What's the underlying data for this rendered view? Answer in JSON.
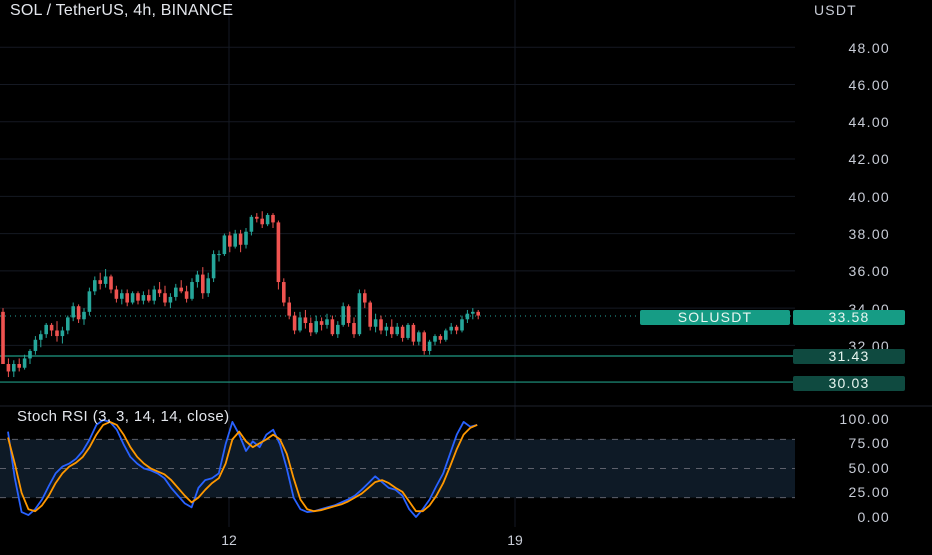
{
  "header": {
    "title": "SOL / TetherUS, 4h, BINANCE",
    "currency": "USDT"
  },
  "price_axis": {
    "ticks": [
      "48.00",
      "46.00",
      "44.00",
      "42.00",
      "40.00",
      "38.00",
      "36.00",
      "34.00",
      "32.00"
    ]
  },
  "time_axis": {
    "ticks": [
      "12",
      "19"
    ]
  },
  "price_tags": {
    "symbol_label": "SOLUSDT",
    "last_price": "33.58",
    "level_1": "31.43",
    "level_2": "30.03"
  },
  "indicator": {
    "title": "Stoch RSI (3, 3, 14, 14, close)",
    "ticks": [
      "100.00",
      "75.00",
      "50.00",
      "25.00",
      "0.00"
    ]
  },
  "colors": {
    "up": "#26a69a",
    "down": "#ef5350",
    "k_line": "#2962ff",
    "d_line": "#ff9800",
    "band": "#0e1a26",
    "level_line": "#1f9a82"
  },
  "chart_data": [
    {
      "type": "candlestick",
      "title": "SOL / TetherUS, 4h, BINANCE",
      "ylim": [
        28.8,
        50.0
      ],
      "y_unit": "USDT",
      "x_ticks": [
        "12",
        "19"
      ],
      "horizontal_levels": [
        31.43,
        30.03
      ],
      "last_price": 33.58,
      "ohlc": [
        [
          33.8,
          34.0,
          31.0,
          31.0
        ],
        [
          31.0,
          31.3,
          30.3,
          30.6
        ],
        [
          30.6,
          31.2,
          30.3,
          31.0
        ],
        [
          31.0,
          31.3,
          30.6,
          30.8
        ],
        [
          30.8,
          31.5,
          30.7,
          31.3
        ],
        [
          31.3,
          31.8,
          31.0,
          31.7
        ],
        [
          31.7,
          32.5,
          31.5,
          32.3
        ],
        [
          32.3,
          32.8,
          31.9,
          32.6
        ],
        [
          32.6,
          33.2,
          32.4,
          33.1
        ],
        [
          33.1,
          33.2,
          32.5,
          32.8
        ],
        [
          32.8,
          33.3,
          32.2,
          32.5
        ],
        [
          32.5,
          33.0,
          32.1,
          32.8
        ],
        [
          32.8,
          33.6,
          32.6,
          33.5
        ],
        [
          33.5,
          34.3,
          33.3,
          34.1
        ],
        [
          34.1,
          34.2,
          33.2,
          33.4
        ],
        [
          33.4,
          34.0,
          33.1,
          33.8
        ],
        [
          33.8,
          35.1,
          33.6,
          34.9
        ],
        [
          34.9,
          35.7,
          34.7,
          35.5
        ],
        [
          35.5,
          35.9,
          35.0,
          35.3
        ],
        [
          35.3,
          36.1,
          35.1,
          35.7
        ],
        [
          35.7,
          35.8,
          34.8,
          35.0
        ],
        [
          35.0,
          35.2,
          34.3,
          34.5
        ],
        [
          34.5,
          35.0,
          34.2,
          34.8
        ],
        [
          34.8,
          35.0,
          34.1,
          34.3
        ],
        [
          34.3,
          34.9,
          34.2,
          34.8
        ],
        [
          34.8,
          34.9,
          34.2,
          34.4
        ],
        [
          34.4,
          34.9,
          34.2,
          34.7
        ],
        [
          34.7,
          35.0,
          34.3,
          34.4
        ],
        [
          34.4,
          35.2,
          34.2,
          35.0
        ],
        [
          35.0,
          35.4,
          34.6,
          34.8
        ],
        [
          34.8,
          35.2,
          34.1,
          34.3
        ],
        [
          34.3,
          34.8,
          34.0,
          34.6
        ],
        [
          34.6,
          35.3,
          34.4,
          35.1
        ],
        [
          35.1,
          35.5,
          34.8,
          34.9
        ],
        [
          34.9,
          35.2,
          34.3,
          34.5
        ],
        [
          34.5,
          35.6,
          34.4,
          35.4
        ],
        [
          35.4,
          36.0,
          35.1,
          35.8
        ],
        [
          35.8,
          36.2,
          34.5,
          34.8
        ],
        [
          34.8,
          35.9,
          34.6,
          35.6
        ],
        [
          35.6,
          37.1,
          35.4,
          36.9
        ],
        [
          36.9,
          37.1,
          36.5,
          36.9
        ],
        [
          36.9,
          38.0,
          36.8,
          37.9
        ],
        [
          37.9,
          38.1,
          37.0,
          37.3
        ],
        [
          37.3,
          38.2,
          37.2,
          38.0
        ],
        [
          38.0,
          38.2,
          37.0,
          37.4
        ],
        [
          37.4,
          38.3,
          37.2,
          38.1
        ],
        [
          38.1,
          39.0,
          37.9,
          38.9
        ],
        [
          38.9,
          39.1,
          38.6,
          38.8
        ],
        [
          38.8,
          39.2,
          38.3,
          38.5
        ],
        [
          38.5,
          39.1,
          38.4,
          39.0
        ],
        [
          39.0,
          39.1,
          38.3,
          38.6
        ],
        [
          38.6,
          38.7,
          35.0,
          35.4
        ],
        [
          35.4,
          35.6,
          34.1,
          34.3
        ],
        [
          34.3,
          34.6,
          33.4,
          33.6
        ],
        [
          33.6,
          33.8,
          32.6,
          32.8
        ],
        [
          32.8,
          33.8,
          32.7,
          33.5
        ],
        [
          33.5,
          33.9,
          32.9,
          33.2
        ],
        [
          33.2,
          33.5,
          32.5,
          32.7
        ],
        [
          32.7,
          33.6,
          32.6,
          33.3
        ],
        [
          33.3,
          33.5,
          32.8,
          33.1
        ],
        [
          33.1,
          33.7,
          32.9,
          33.4
        ],
        [
          33.4,
          33.6,
          32.5,
          32.6
        ],
        [
          32.6,
          33.3,
          32.4,
          33.1
        ],
        [
          33.1,
          34.3,
          33.0,
          34.1
        ],
        [
          34.1,
          34.2,
          33.0,
          33.2
        ],
        [
          33.2,
          33.5,
          32.4,
          32.6
        ],
        [
          32.6,
          35.0,
          32.5,
          34.8
        ],
        [
          34.8,
          35.0,
          34.0,
          34.3
        ],
        [
          34.3,
          34.4,
          32.8,
          33.0
        ],
        [
          33.0,
          33.7,
          32.7,
          33.4
        ],
        [
          33.4,
          33.6,
          32.6,
          32.8
        ],
        [
          32.8,
          33.2,
          32.5,
          33.0
        ],
        [
          33.0,
          33.4,
          32.4,
          32.6
        ],
        [
          32.6,
          33.2,
          32.5,
          33.0
        ],
        [
          33.0,
          33.1,
          32.2,
          32.4
        ],
        [
          32.4,
          33.2,
          32.3,
          33.1
        ],
        [
          33.1,
          33.2,
          32.0,
          32.2
        ],
        [
          32.2,
          32.8,
          32.0,
          32.7
        ],
        [
          32.7,
          32.8,
          31.5,
          31.7
        ],
        [
          31.7,
          32.3,
          31.5,
          32.2
        ],
        [
          32.2,
          32.6,
          32.0,
          32.5
        ],
        [
          32.5,
          32.6,
          32.1,
          32.3
        ],
        [
          32.3,
          32.9,
          32.2,
          32.8
        ],
        [
          32.8,
          33.2,
          32.6,
          33.0
        ],
        [
          33.0,
          33.1,
          32.6,
          32.8
        ],
        [
          32.8,
          33.6,
          32.7,
          33.4
        ],
        [
          33.4,
          33.9,
          33.2,
          33.7
        ],
        [
          33.7,
          34.0,
          33.4,
          33.8
        ],
        [
          33.8,
          33.9,
          33.4,
          33.6
        ]
      ]
    },
    {
      "type": "line",
      "title": "Stoch RSI (3, 3, 14, 14, close)",
      "ylim": [
        0,
        100
      ],
      "bands": [
        20,
        50,
        80
      ],
      "x_ticks": [
        "12",
        "19"
      ],
      "series": [
        {
          "values": [
            88,
            40,
            5,
            2,
            8,
            18,
            32,
            45,
            52,
            55,
            60,
            68,
            80,
            95,
            100,
            98,
            90,
            75,
            62,
            55,
            50,
            48,
            45,
            40,
            30,
            22,
            14,
            10,
            30,
            38,
            40,
            45,
            75,
            98,
            85,
            68,
            78,
            72,
            85,
            90,
            75,
            50,
            20,
            8,
            5,
            6,
            8,
            10,
            12,
            15,
            18,
            22,
            28,
            35,
            42,
            36,
            30,
            28,
            22,
            8,
            0,
            8,
            18,
            32,
            45,
            65,
            85,
            98,
            93,
            95
          ]
        },
        {
          "values": [
            82,
            55,
            25,
            8,
            6,
            12,
            22,
            35,
            45,
            52,
            56,
            62,
            72,
            85,
            95,
            98,
            95,
            85,
            72,
            62,
            55,
            50,
            47,
            44,
            38,
            30,
            22,
            15,
            20,
            28,
            35,
            40,
            55,
            80,
            88,
            78,
            72,
            76,
            80,
            85,
            80,
            65,
            40,
            18,
            8,
            6,
            7,
            9,
            11,
            13,
            16,
            20,
            24,
            30,
            36,
            38,
            35,
            30,
            26,
            16,
            6,
            6,
            12,
            22,
            35,
            52,
            70,
            85,
            92,
            95
          ]
        }
      ]
    }
  ]
}
